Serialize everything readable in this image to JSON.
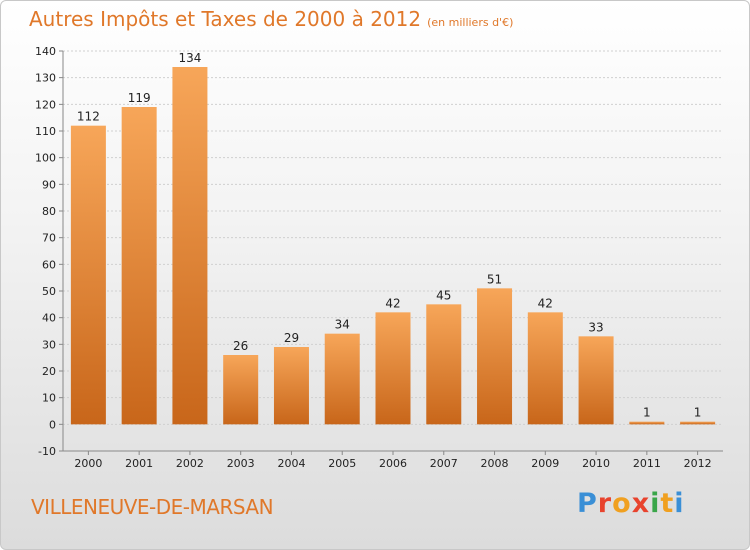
{
  "header": {
    "title": "Autres Impôts et Taxes de 2000 à 2012",
    "subtitle": "(en milliers d'€)"
  },
  "footer": {
    "city": "VILLENEUVE-DE-MARSAN",
    "logo_text": "Proxiti",
    "logo_colors": [
      "#3a8fd6",
      "#e8432d",
      "#f0a020",
      "#e8432d",
      "#3aa64a",
      "#f0a020",
      "#3a8fd6"
    ]
  },
  "colors": {
    "bar_light": "#f7a659",
    "bar_dark": "#c8661a",
    "grid": "#d0d0d0",
    "axis_text": "#222222"
  },
  "chart_data": {
    "type": "bar",
    "title": "Autres Impôts et Taxes de 2000 à 2012",
    "subtitle": "(en milliers d'€)",
    "xlabel": "",
    "ylabel": "",
    "categories": [
      "2000",
      "2001",
      "2002",
      "2003",
      "2004",
      "2005",
      "2006",
      "2007",
      "2008",
      "2009",
      "2010",
      "2011",
      "2012"
    ],
    "values": [
      112,
      119,
      134,
      26,
      29,
      34,
      42,
      45,
      51,
      42,
      33,
      1,
      1
    ],
    "data_labels": [
      "112",
      "119",
      "134",
      "26",
      "29",
      "34",
      "42",
      "45",
      "51",
      "42",
      "33",
      "1",
      "1"
    ],
    "ylim": [
      -10,
      140
    ],
    "yticks": [
      -10,
      0,
      10,
      20,
      30,
      40,
      50,
      60,
      70,
      80,
      90,
      100,
      110,
      120,
      130,
      140
    ],
    "ytick_labels": [
      "-10",
      "0",
      "10",
      "20",
      "30",
      "40",
      "50",
      "60",
      "70",
      "80",
      "90",
      "100",
      "110",
      "120",
      "130",
      "140"
    ],
    "grid": true,
    "legend": "none"
  }
}
